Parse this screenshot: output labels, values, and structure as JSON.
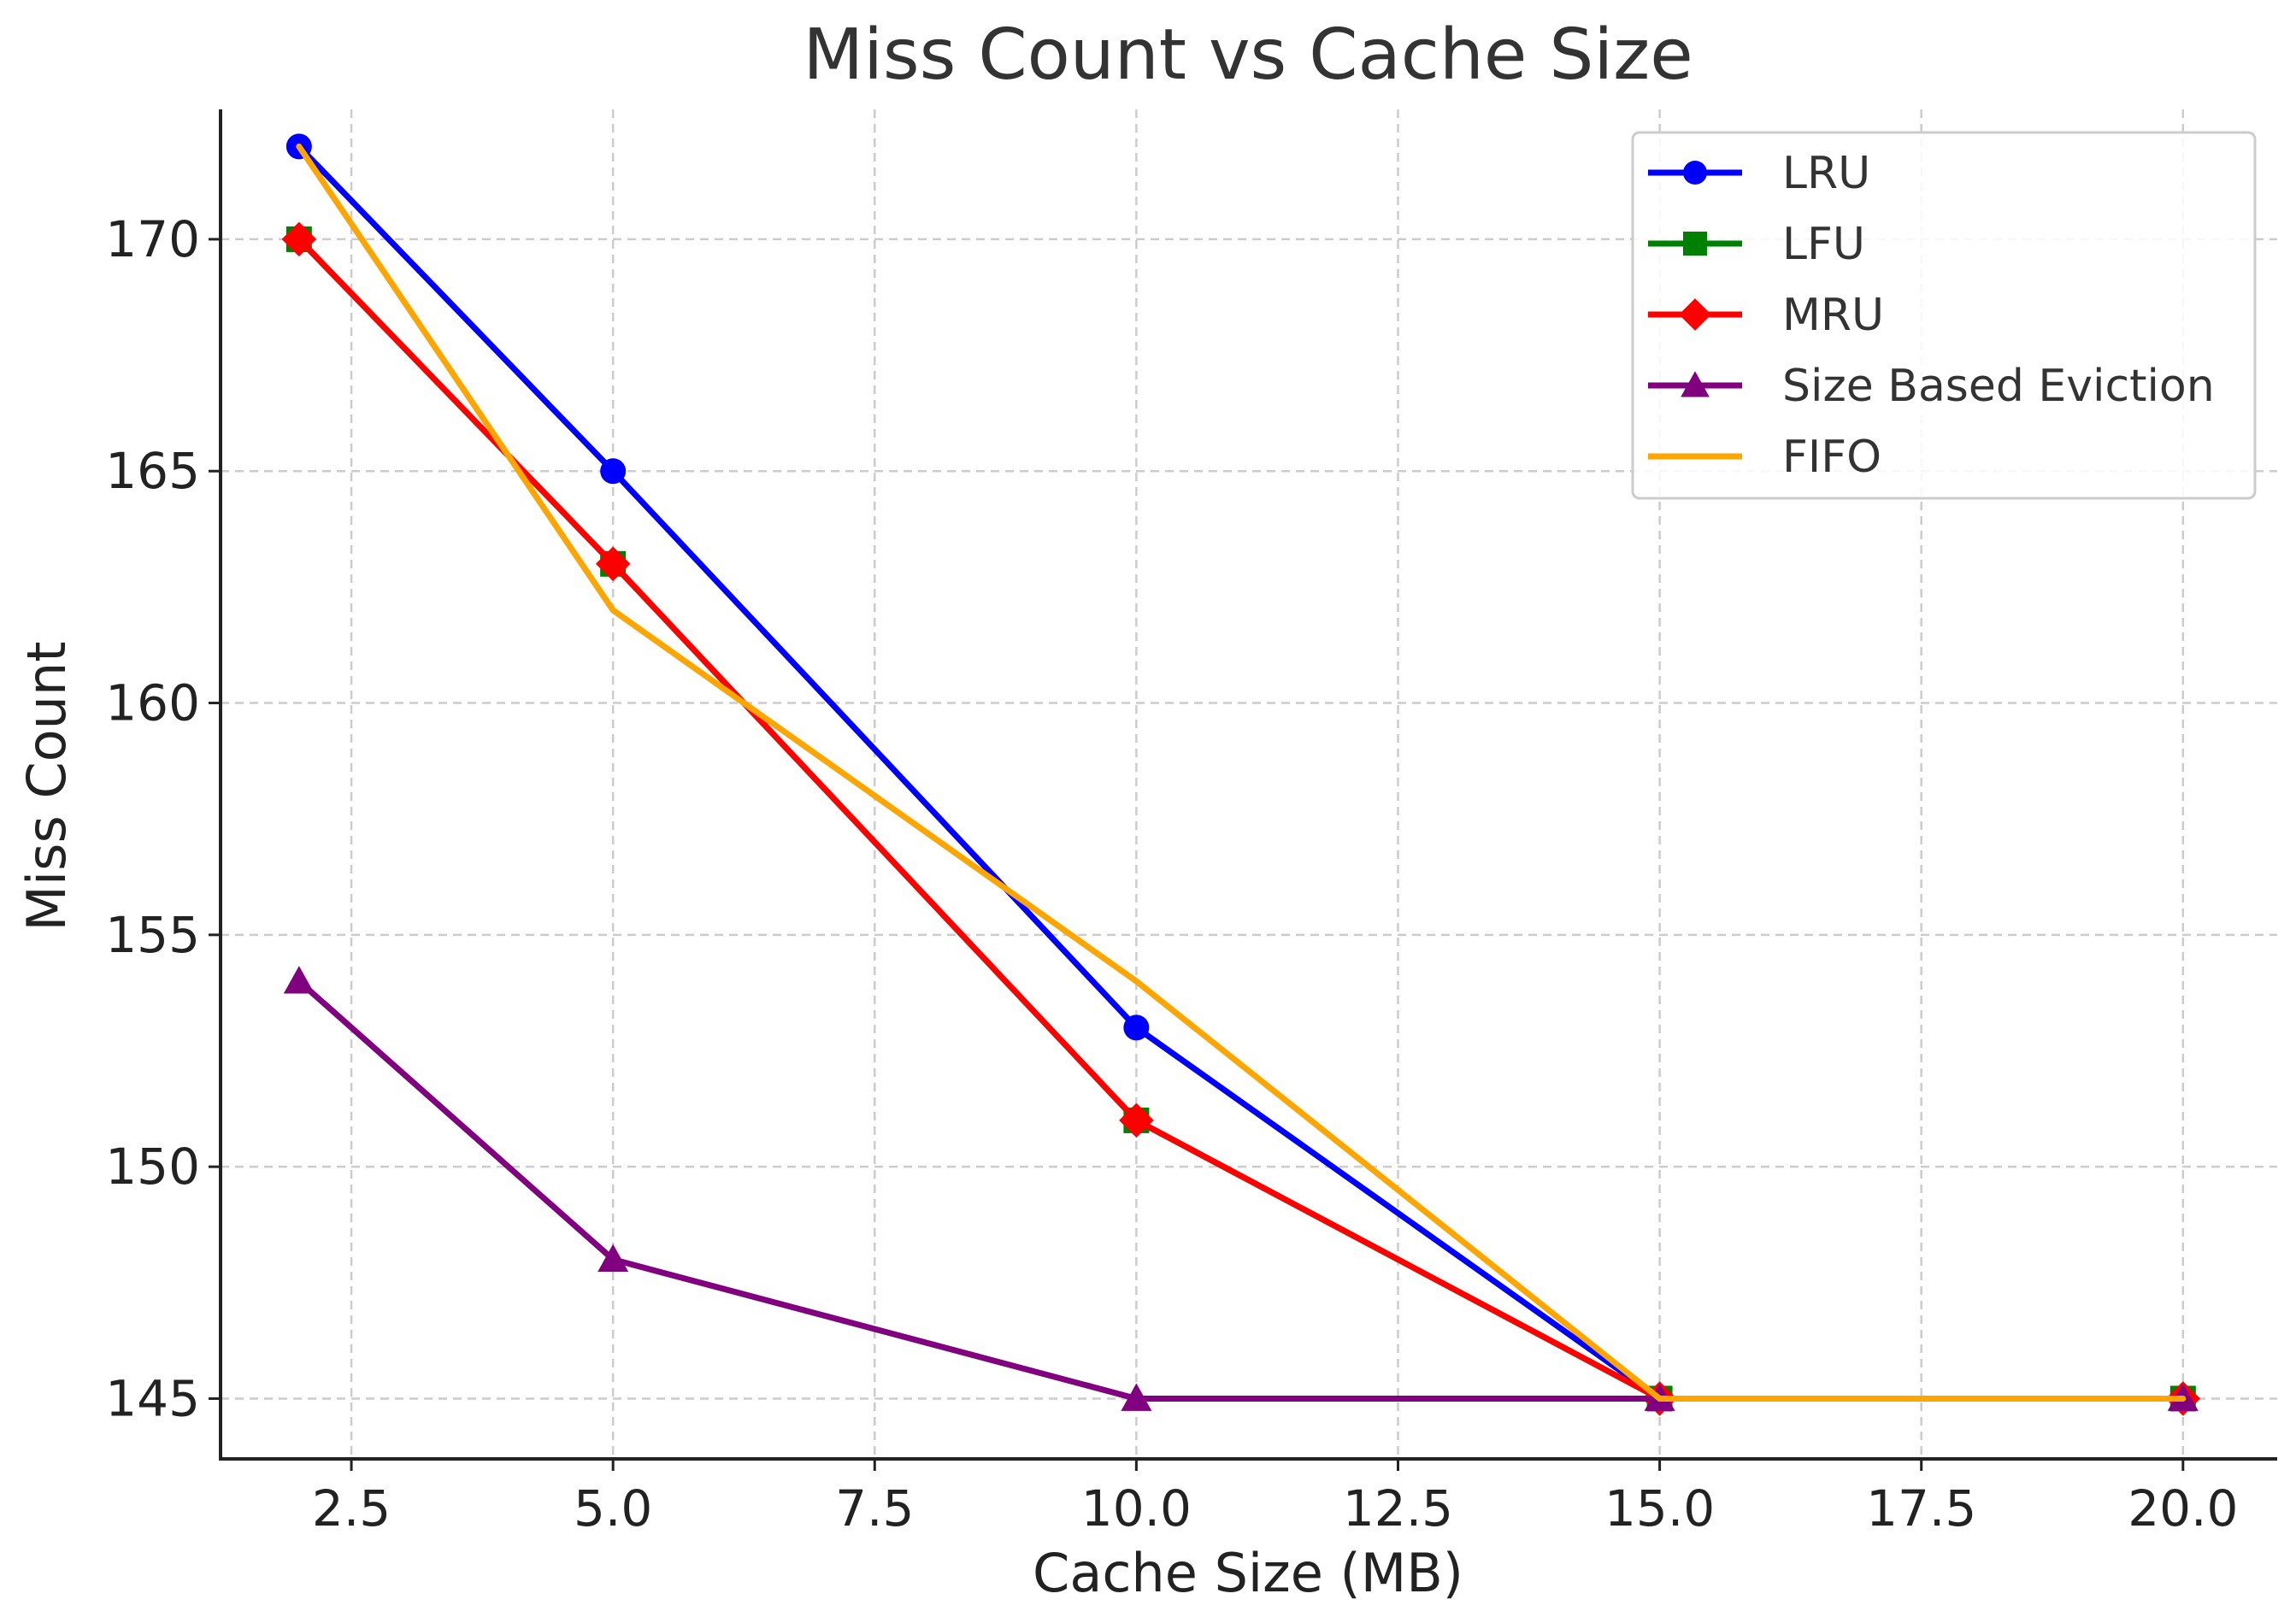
{
  "chart_data": {
    "type": "line",
    "title": "Miss Count vs Cache Size",
    "xlabel": "Cache Size (MB)",
    "ylabel": "Miss Count",
    "xlim": [
      1.25,
      20.9
    ],
    "ylim": [
      143.7,
      172.8
    ],
    "xticks": [
      2.5,
      5.0,
      7.5,
      10.0,
      12.5,
      15.0,
      17.5,
      20.0
    ],
    "xtick_labels": [
      "2.5",
      "5.0",
      "7.5",
      "10.0",
      "12.5",
      "15.0",
      "17.5",
      "20.0"
    ],
    "yticks": [
      145,
      150,
      155,
      160,
      165,
      170
    ],
    "ytick_labels": [
      "145",
      "150",
      "155",
      "160",
      "165",
      "170"
    ],
    "grid": true,
    "legend_position": "top-right",
    "x": [
      2,
      5,
      10,
      15,
      20
    ],
    "series": [
      {
        "name": "LRU",
        "values": [
          172,
          165,
          153,
          145,
          145
        ],
        "color": "#0000ff",
        "marker": "circle"
      },
      {
        "name": "LFU",
        "values": [
          170,
          163,
          151,
          145,
          145
        ],
        "color": "#008000",
        "marker": "square"
      },
      {
        "name": "MRU",
        "values": [
          170,
          163,
          151,
          145,
          145
        ],
        "color": "#ff0000",
        "marker": "diamond"
      },
      {
        "name": "Size Based Eviction",
        "values": [
          154,
          148,
          145,
          145,
          145
        ],
        "color": "#800080",
        "marker": "triangle"
      },
      {
        "name": "FIFO",
        "values": [
          172,
          162,
          154,
          145,
          145
        ],
        "color": "#ffa500",
        "marker": "none"
      }
    ]
  }
}
